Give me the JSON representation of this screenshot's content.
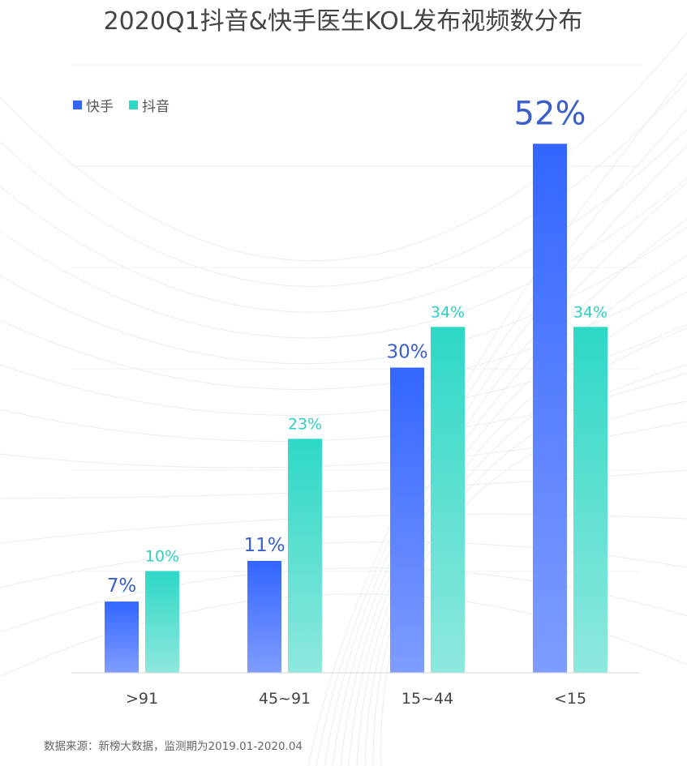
{
  "chart_data": {
    "type": "bar",
    "title": "2020Q1抖音&快手医生KOL发布视频数分布",
    "categories": [
      ">91",
      "45~91",
      "15~44",
      "<15"
    ],
    "series": [
      {
        "name": "快手",
        "values": [
          7,
          11,
          30,
          52
        ],
        "labels": [
          "7%",
          "11%",
          "30%",
          "52%"
        ],
        "color": "#3366ff",
        "color_light": "#7f9cff",
        "label_color": "#3a5fc8"
      },
      {
        "name": "抖音",
        "values": [
          10,
          23,
          34,
          34
        ],
        "labels": [
          "10%",
          "23%",
          "34%",
          "34%"
        ],
        "color": "#2ed8c6",
        "color_light": "#8ee8de",
        "label_color": "#2ecfc0"
      }
    ],
    "ylim": [
      0,
      52
    ],
    "grid": true,
    "legend_position": "top-left",
    "source": "数据来源：新榜大数据，监测期为2019.01-2020.04"
  }
}
